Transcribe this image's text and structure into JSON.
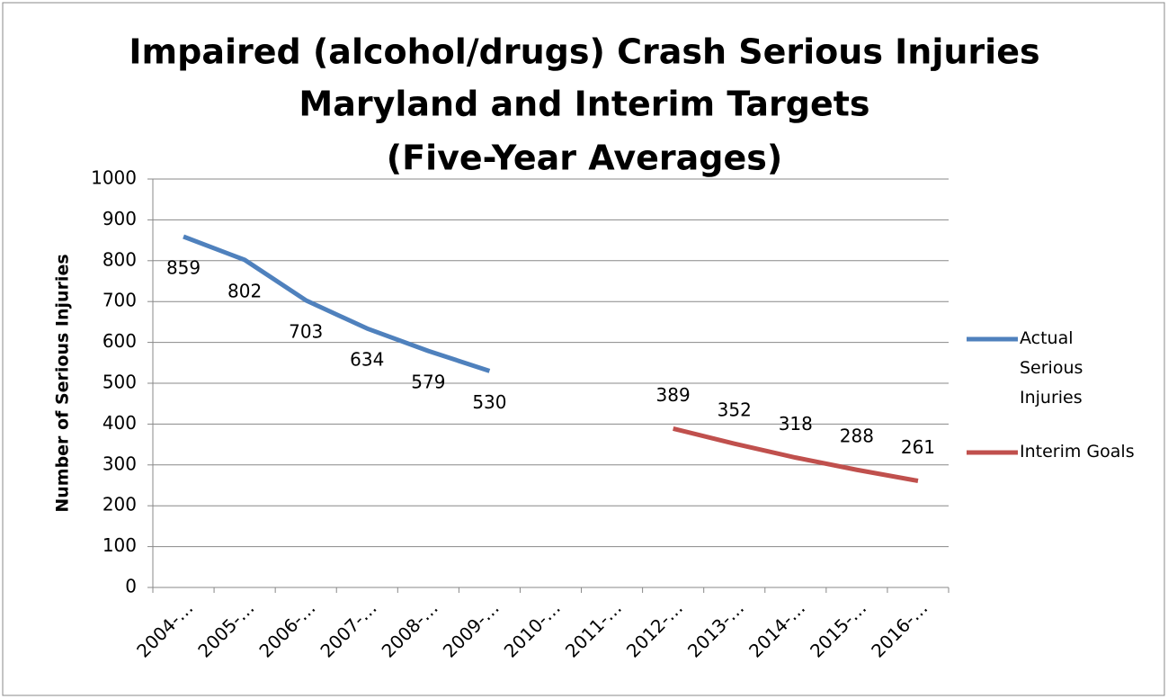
{
  "chart_data": {
    "type": "line",
    "title": [
      "Impaired (alcohol/drugs) Crash Serious Injuries",
      "Maryland and Interim Targets",
      "(Five-Year Averages)"
    ],
    "y_label": "Number of Serious Injuries",
    "categories": [
      "2004-…",
      "2005-…",
      "2006-…",
      "2007-…",
      "2008-…",
      "2009-…",
      "2010-…",
      "2011-…",
      "2012-…",
      "2013-…",
      "2014-…",
      "2015-…",
      "2016-…"
    ],
    "series": [
      {
        "name": "Actual Serious Injuries",
        "color": "#4f81bd",
        "values": [
          859,
          802,
          703,
          634,
          579,
          530,
          null,
          null,
          null,
          null,
          null,
          null,
          null
        ]
      },
      {
        "name": "Interim Goals",
        "color": "#c0504d",
        "values": [
          null,
          null,
          null,
          null,
          null,
          null,
          null,
          null,
          389,
          352,
          318,
          288,
          261
        ]
      }
    ],
    "ylim": [
      0,
      1000
    ],
    "yticks": [
      0,
      100,
      200,
      300,
      400,
      500,
      600,
      700,
      800,
      900,
      1000
    ],
    "grid": true,
    "legend": "right"
  }
}
